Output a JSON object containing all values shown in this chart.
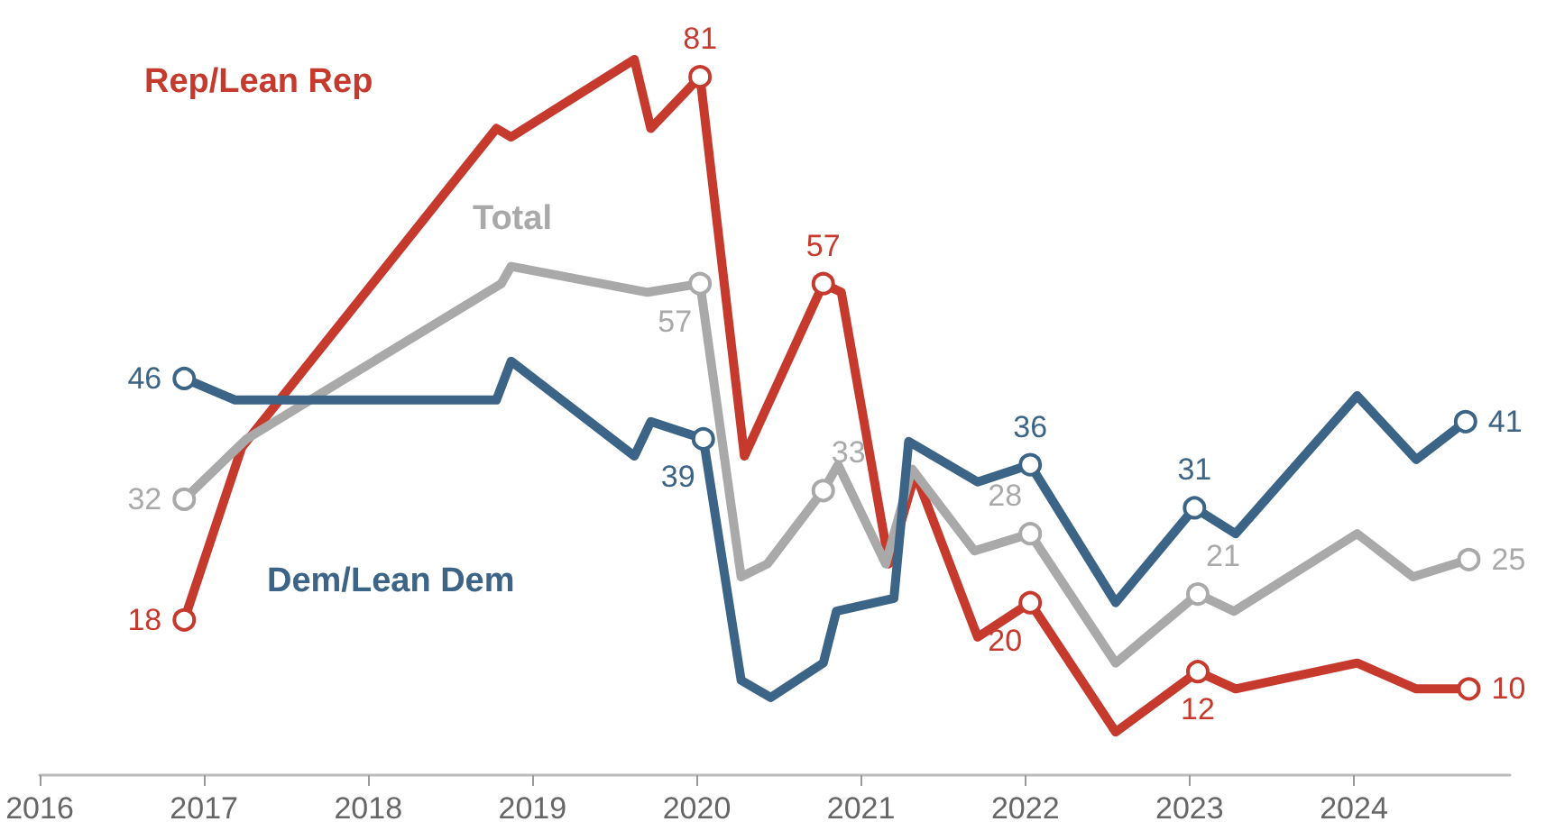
{
  "chart_data": {
    "type": "line",
    "xlim": [
      2016.0,
      2024.95
    ],
    "xticks": [
      2016,
      2017,
      2018,
      2019,
      2020,
      2021,
      2022,
      2023,
      2024
    ],
    "tick_labels": "x",
    "grid": false,
    "legend": false,
    "line_style": "solid",
    "series": [
      {
        "name": "Rep/Lean Rep",
        "color": "#c63a2e",
        "x": [
          2016.88,
          2017.23,
          2018.78,
          2018.87,
          2019.62,
          2019.72,
          2020.02,
          2020.29,
          2020.77,
          2020.88,
          2021.17,
          2021.33,
          2021.71,
          2022.03,
          2022.55,
          2023.05,
          2023.28,
          2024.02,
          2024.38,
          2024.7
        ],
        "values": [
          18,
          38,
          75,
          74,
          83,
          75,
          81,
          37,
          57,
          56,
          24.5,
          35,
          16,
          20,
          5,
          12,
          10,
          13,
          10,
          10
        ],
        "value_labels": [
          "18",
          null,
          null,
          null,
          null,
          null,
          "81",
          null,
          "57",
          null,
          null,
          null,
          null,
          "20",
          null,
          "12",
          null,
          null,
          null,
          "10"
        ]
      },
      {
        "name": "Total",
        "color": "#a9a9a9",
        "x": [
          2016.88,
          2017.26,
          2017.69,
          2018.81,
          2018.87,
          2019.7,
          2020.02,
          2020.27,
          2020.43,
          2020.77,
          2020.86,
          2021.15,
          2021.31,
          2021.69,
          2022.03,
          2022.55,
          2023.05,
          2023.27,
          2024.02,
          2024.36,
          2024.7
        ],
        "values": [
          32,
          39,
          44,
          57,
          59,
          56,
          57,
          23,
          24.5,
          33,
          36,
          24.5,
          35.5,
          26,
          28,
          13,
          21,
          19,
          28,
          23,
          25
        ],
        "value_labels": [
          "32",
          null,
          null,
          null,
          null,
          null,
          "57",
          null,
          null,
          "33",
          null,
          null,
          null,
          null,
          "28",
          null,
          "21",
          null,
          null,
          null,
          "25"
        ]
      },
      {
        "name": "Dem/Lean Dem",
        "color": "#3b6486",
        "x": [
          2016.88,
          2017.19,
          2018.78,
          2018.87,
          2019.62,
          2019.72,
          2020.04,
          2020.27,
          2020.45,
          2020.77,
          2020.85,
          2021.2,
          2021.29,
          2021.71,
          2022.03,
          2022.55,
          2023.03,
          2023.28,
          2024.02,
          2024.38,
          2024.68
        ],
        "values": [
          46,
          43.5,
          43.5,
          48,
          37,
          41,
          39,
          11,
          9,
          13,
          19,
          20.5,
          38.7,
          34,
          36,
          20,
          31,
          28,
          44,
          36.6,
          41
        ],
        "value_labels": [
          "46",
          null,
          null,
          null,
          null,
          null,
          "39",
          null,
          null,
          null,
          null,
          null,
          null,
          null,
          "36",
          null,
          "31",
          null,
          null,
          null,
          "41"
        ]
      }
    ]
  }
}
